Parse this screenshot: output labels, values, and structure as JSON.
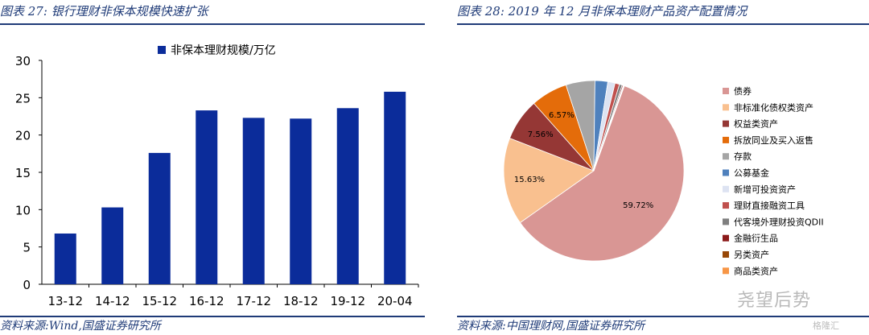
{
  "left": {
    "title": "图表 27:  银行理财非保本规模快速扩张",
    "source": "资料来源:Wind,国盛证券研究所"
  },
  "right": {
    "title": "图表 28:  2019 年 12 月非保本理财产品资产配置情况",
    "source": "资料来源:中国理财网,国盛证券研究所"
  },
  "watermark": {
    "text": "尧望后势",
    "brand": "格隆汇"
  },
  "chart_data": [
    {
      "type": "bar",
      "categories": [
        "13-12",
        "14-12",
        "15-12",
        "16-12",
        "17-12",
        "18-12",
        "19-12",
        "20-04"
      ],
      "series": [
        {
          "name": "非保本理财规模/万亿",
          "values": [
            6.8,
            10.3,
            17.6,
            23.3,
            22.3,
            22.2,
            23.6,
            25.8
          ],
          "color": "#0b2c9a"
        }
      ],
      "ylim": [
        0,
        30
      ],
      "yticks": [
        0,
        5,
        10,
        15,
        20,
        25,
        30
      ],
      "grid": false,
      "legend": "top"
    },
    {
      "type": "pie",
      "slices": [
        {
          "label": "债券",
          "value": 59.72,
          "color": "#d99694",
          "data_label": "59.72%"
        },
        {
          "label": "非标准化债权类资产",
          "value": 15.63,
          "color": "#f9c08f",
          "data_label": "15.63%"
        },
        {
          "label": "权益类资产",
          "value": 7.56,
          "color": "#953735",
          "data_label": "7.56%"
        },
        {
          "label": "拆放同业及买入返售",
          "value": 6.57,
          "color": "#e46c0a",
          "data_label": "6.57%"
        },
        {
          "label": "存款",
          "value": 5.2,
          "color": "#a5a5a5",
          "data_label": ""
        },
        {
          "label": "公募基金",
          "value": 2.3,
          "color": "#4f81bd",
          "data_label": ""
        },
        {
          "label": "新增可投资资产",
          "value": 1.3,
          "color": "#dde3f2",
          "data_label": ""
        },
        {
          "label": "理财直接融资工具",
          "value": 0.8,
          "color": "#c0504d",
          "data_label": ""
        },
        {
          "label": "代客境外理财投资QDII",
          "value": 0.5,
          "color": "#7f7f7f",
          "data_label": ""
        },
        {
          "label": "金融衍生品",
          "value": 0.2,
          "color": "#8b1a1a",
          "data_label": ""
        },
        {
          "label": "另类资产",
          "value": 0.1,
          "color": "#984807",
          "data_label": ""
        },
        {
          "label": "商品类资产",
          "value": 0.1,
          "color": "#f79646",
          "data_label": ""
        }
      ],
      "legend": "right"
    }
  ]
}
